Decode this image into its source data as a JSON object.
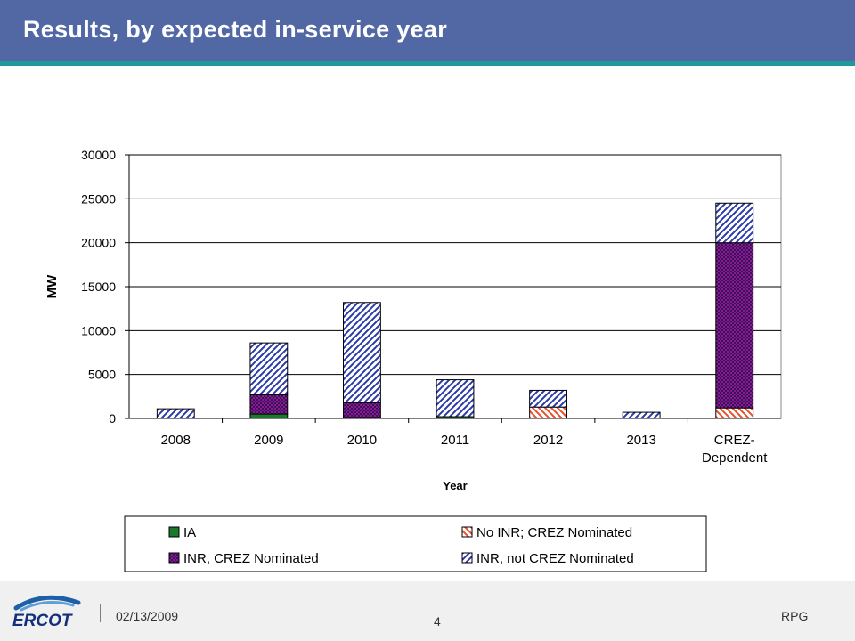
{
  "slide": {
    "title": "Results, by expected in-service year"
  },
  "footer": {
    "date": "02/13/2009",
    "page": "4",
    "right_text": "RPG",
    "logo_text": "ERCOT"
  },
  "chart_data": {
    "type": "bar",
    "stacked": true,
    "title": "",
    "xlabel": "Year",
    "ylabel": "MW",
    "ylim": [
      0,
      30000
    ],
    "yticks": [
      "0",
      "5000",
      "10000",
      "15000",
      "20000",
      "25000",
      "30000"
    ],
    "grid": true,
    "legend_position": "bottom",
    "categories": [
      "2008",
      "2009",
      "2010",
      "2011",
      "2012",
      "2013",
      "CREZ-\nDependent"
    ],
    "series": [
      {
        "name": "IA",
        "values": [
          0,
          500,
          100,
          200,
          0,
          0,
          0
        ],
        "color": "#1a7a2a",
        "pattern": "solid"
      },
      {
        "name": "No INR; CREZ Nominated",
        "values": [
          0,
          0,
          0,
          0,
          1300,
          0,
          1200
        ],
        "color": "#e8502a",
        "pattern": "hatch-down"
      },
      {
        "name": "INR, CREZ Nominated",
        "values": [
          0,
          2200,
          1700,
          0,
          0,
          0,
          18800
        ],
        "color": "#8b1a8b",
        "pattern": "checker"
      },
      {
        "name": "INR, not CREZ Nominated",
        "values": [
          1100,
          5900,
          11400,
          4200,
          1900,
          700,
          4500
        ],
        "color": "#2a3aa8",
        "pattern": "hatch-up"
      }
    ]
  }
}
